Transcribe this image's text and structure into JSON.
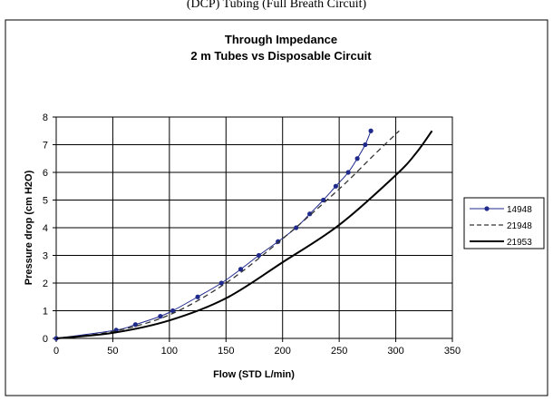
{
  "top_caption": "(DCP) Tubing (Full Breath Circuit)",
  "chart_data": {
    "type": "line",
    "title": "Through Impedance",
    "subtitle": "2 m Tubes vs Disposable Circuit",
    "xlabel": "Flow (STD L/min)",
    "ylabel": "Pressure drop (cm H2O)",
    "xlim": [
      0,
      350
    ],
    "ylim": [
      0,
      8
    ],
    "x_ticks": [
      0,
      50,
      100,
      150,
      200,
      250,
      300,
      350
    ],
    "y_ticks": [
      0,
      1,
      2,
      3,
      4,
      5,
      6,
      7,
      8
    ],
    "grid": true,
    "legend_position": "right",
    "series": [
      {
        "name": "14948",
        "style": "marker-line",
        "color": "#1f2a8c",
        "x": [
          0,
          53,
          70,
          92,
          103,
          125,
          146,
          163,
          179,
          196,
          212,
          224,
          236,
          247,
          258,
          266,
          273,
          278
        ],
        "y": [
          0,
          0.3,
          0.5,
          0.8,
          1.0,
          1.5,
          2.0,
          2.5,
          3.0,
          3.5,
          4.0,
          4.5,
          5.0,
          5.5,
          6.0,
          6.5,
          7.0,
          7.5
        ]
      },
      {
        "name": "21948",
        "style": "dashed",
        "color": "#333333",
        "x": [
          0,
          50,
          100,
          150,
          200,
          250,
          280,
          303
        ],
        "y": [
          0,
          0.25,
          0.85,
          2.0,
          3.6,
          5.4,
          6.6,
          7.5
        ]
      },
      {
        "name": "21953",
        "style": "solid-thick",
        "color": "#000000",
        "x": [
          0,
          50,
          100,
          150,
          200,
          250,
          300,
          318,
          332
        ],
        "y": [
          0,
          0.2,
          0.65,
          1.45,
          2.75,
          4.1,
          5.9,
          6.7,
          7.5
        ]
      }
    ]
  }
}
